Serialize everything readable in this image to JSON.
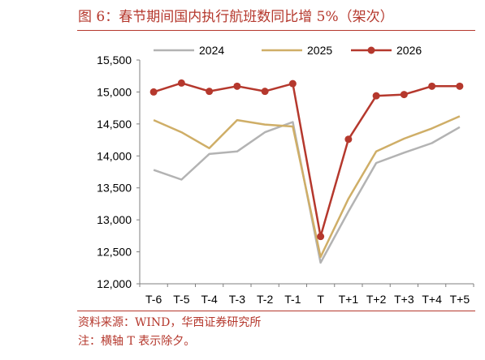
{
  "title": "图 6：春节期间国内执行航班数同比增 5%（架次）",
  "source": "资料来源：WIND，华西证券研究所",
  "note": "注：横轴 T 表示除夕。",
  "colors": {
    "accent": "#b5382d",
    "s2024": "#b3b3b3",
    "s2025": "#cfae67",
    "s2026": "#b5382d"
  },
  "chart_data": {
    "type": "line",
    "categories": [
      "T-6",
      "T-5",
      "T-4",
      "T-3",
      "T-2",
      "T-1",
      "T",
      "T+1",
      "T+2",
      "T+3",
      "T+4",
      "T+5"
    ],
    "ylim": [
      12000,
      15500
    ],
    "yticks": [
      "12,000",
      "12,500",
      "13,000",
      "13,500",
      "14,000",
      "14,500",
      "15,000",
      "15,500"
    ],
    "ytick_values": [
      12000,
      12500,
      13000,
      13500,
      14000,
      14500,
      15000,
      15500
    ],
    "legend_position": "top",
    "grid": false,
    "series": [
      {
        "name": "2024",
        "color": "#b3b3b3",
        "marker": false,
        "values": [
          13780,
          13630,
          14030,
          14070,
          14370,
          14530,
          12330,
          13130,
          13890,
          14050,
          14200,
          14450
        ]
      },
      {
        "name": "2025",
        "color": "#cfae67",
        "marker": false,
        "values": [
          14560,
          14370,
          14120,
          14560,
          14490,
          14460,
          12420,
          13330,
          14070,
          14270,
          14430,
          14620
        ]
      },
      {
        "name": "2026",
        "color": "#b5382d",
        "marker": true,
        "values": [
          15000,
          15140,
          15010,
          15090,
          15010,
          15130,
          12740,
          14260,
          14940,
          14960,
          15090,
          15090
        ]
      }
    ]
  }
}
